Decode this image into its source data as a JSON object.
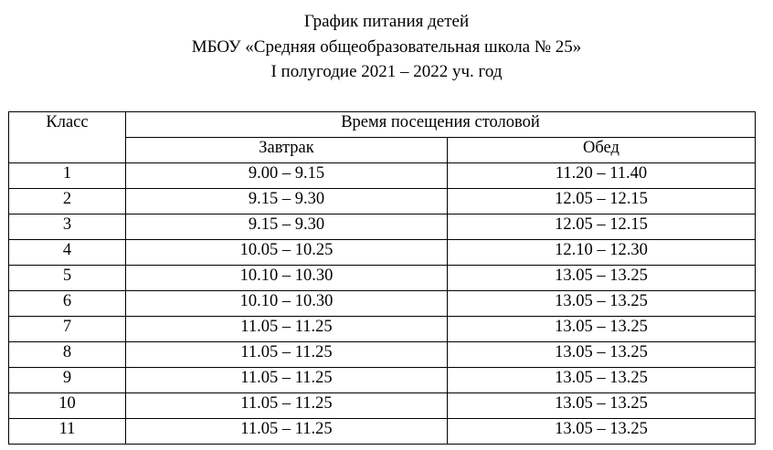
{
  "header": {
    "lines": [
      "График питания детей",
      "МБОУ «Средняя общеобразовательная школа № 25»",
      "I полугодие 2021 – 2022 уч. год"
    ]
  },
  "table": {
    "columns": {
      "class": "Класс",
      "time": "Время посещения столовой",
      "breakfast": "Завтрак",
      "lunch": "Обед"
    },
    "rows": [
      [
        "1",
        "9.00 – 9.15",
        "11.20 – 11.40"
      ],
      [
        "2",
        "9.15 – 9.30",
        "12.05 – 12.15"
      ],
      [
        "3",
        "9.15 – 9.30",
        "12.05 – 12.15"
      ],
      [
        "4",
        "10.05 – 10.25",
        "12.10 – 12.30"
      ],
      [
        "5",
        "10.10 – 10.30",
        "13.05 – 13.25"
      ],
      [
        "6",
        "10.10 – 10.30",
        "13.05 – 13.25"
      ],
      [
        "7",
        "11.05 – 11.25",
        "13.05 – 13.25"
      ],
      [
        "8",
        "11.05 – 11.25",
        "13.05 – 13.25"
      ],
      [
        "9",
        "11.05 – 11.25",
        "13.05 – 13.25"
      ],
      [
        "10",
        "11.05 – 11.25",
        "13.05 – 13.25"
      ],
      [
        "11",
        "11.05 – 11.25",
        "13.05 – 13.25"
      ]
    ]
  }
}
